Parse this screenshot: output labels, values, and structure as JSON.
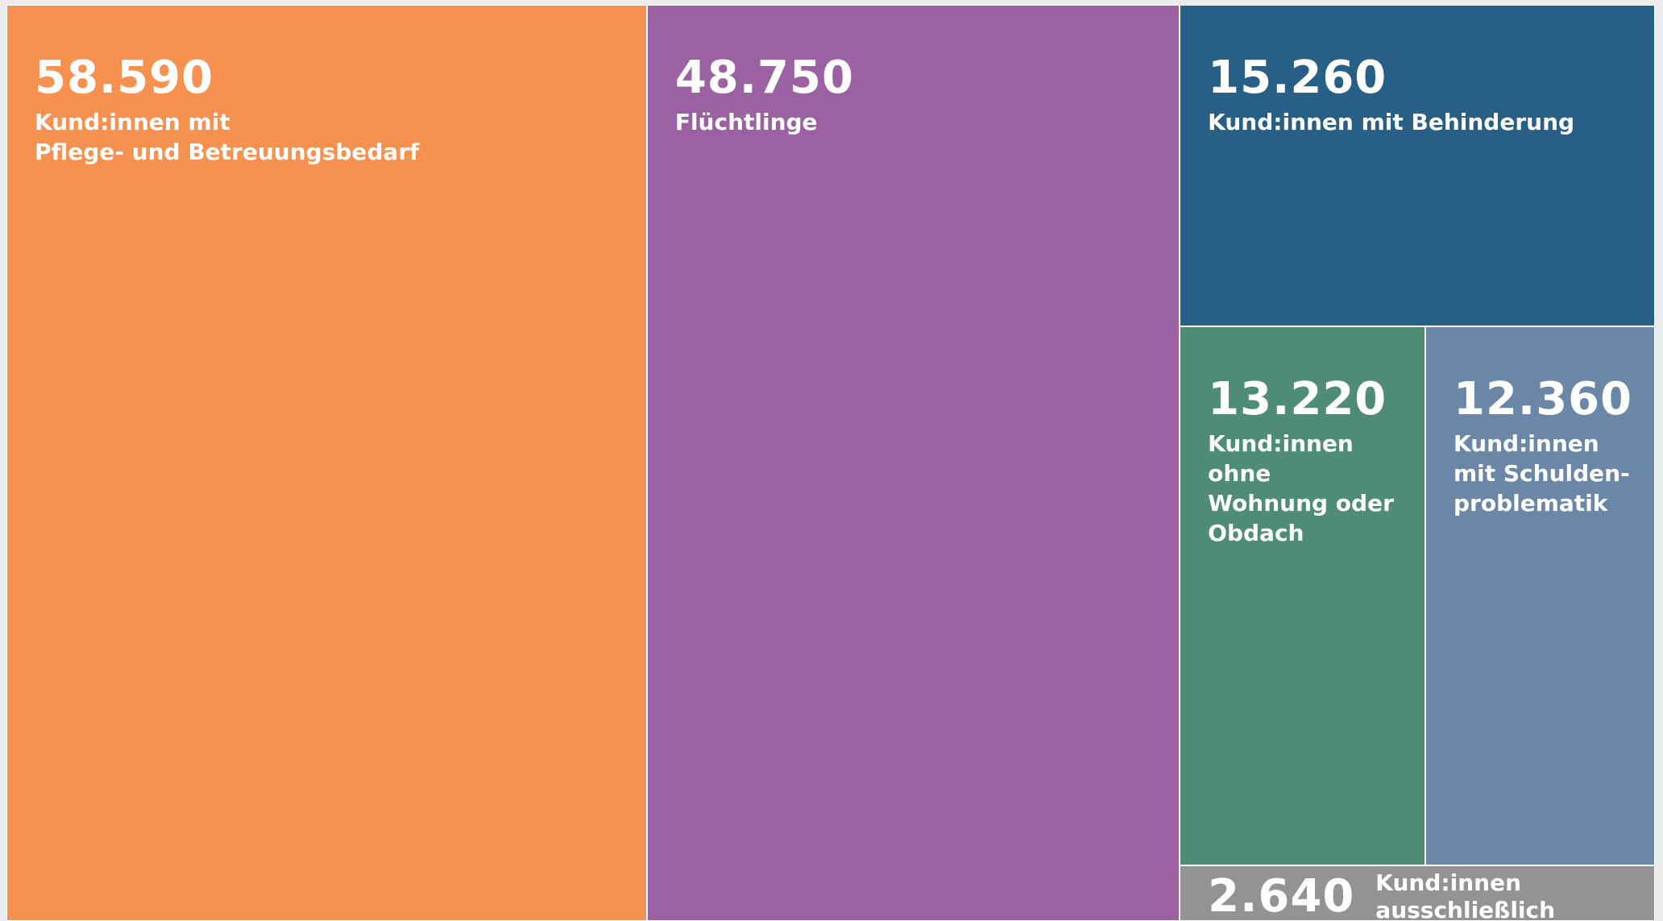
{
  "chart_data": {
    "type": "treemap",
    "categories": [
      "Kund:innen mit\nPflege- und Betreuungsbedarf",
      "Flüchtlinge",
      "Kund:innen mit Behinderung",
      "Kund:innen ohne\nWohnung oder\nObdach",
      "Kund:innen\nmit Schulden-\nproblematik",
      "Kund:innen ausschließlich\nmit Mobilitätsbedarf"
    ],
    "values": [
      58590,
      48750,
      15260,
      13220,
      12360,
      2640
    ],
    "value_labels": [
      "58.590",
      "48.750",
      "15.260",
      "13.220",
      "12.360",
      "2.640"
    ],
    "colors": [
      "#f79150",
      "#9c61a2",
      "#275f87",
      "#4f8c76",
      "#6b87a7",
      "#939393"
    ]
  }
}
